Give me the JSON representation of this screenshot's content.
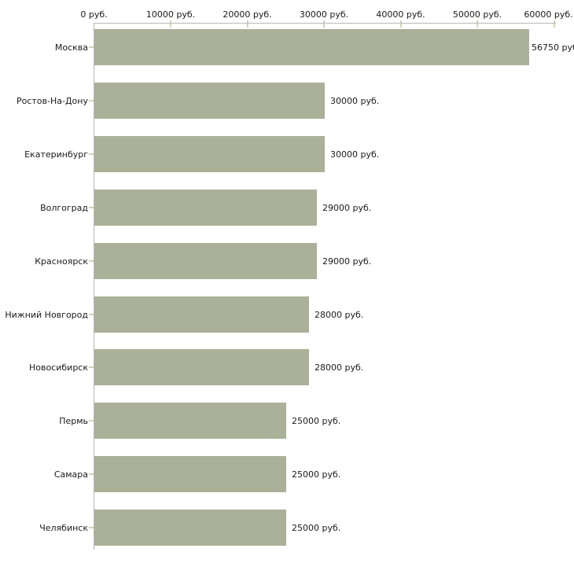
{
  "chart_data": {
    "type": "bar",
    "orientation": "horizontal",
    "title": "",
    "xlabel": "",
    "ylabel": "",
    "axis_position": "top",
    "xlim": [
      0,
      60000
    ],
    "grid": false,
    "legend": false,
    "categories": [
      "Москва",
      "Ростов-На-Дону",
      "Екатеринбург",
      "Волгоград",
      "Красноярск",
      "Нижний Новгород",
      "Новосибирск",
      "Пермь",
      "Самара",
      "Челябинск"
    ],
    "values": [
      56750,
      30000,
      30000,
      29000,
      29000,
      28000,
      28000,
      25000,
      25000,
      25000
    ],
    "value_labels": [
      "56750 руб",
      "30000 руб.",
      "30000 руб.",
      "29000 руб.",
      "29000 руб.",
      "28000 руб.",
      "28000 руб.",
      "25000 руб.",
      "25000 руб.",
      "25000 руб."
    ],
    "x_ticks": {
      "values": [
        0,
        10000,
        20000,
        30000,
        40000,
        50000,
        60000
      ],
      "labels": [
        "0 руб.",
        "10000 руб.",
        "20000 руб.",
        "30000 руб.",
        "40000 руб.",
        "50000 руб.",
        "60000 руб."
      ]
    },
    "colors": {
      "bar": "#abb198",
      "axis": "#b8b8b8",
      "tick": "#d0d4b6",
      "text": "#1a1a1a",
      "background": "#ffffff"
    }
  }
}
